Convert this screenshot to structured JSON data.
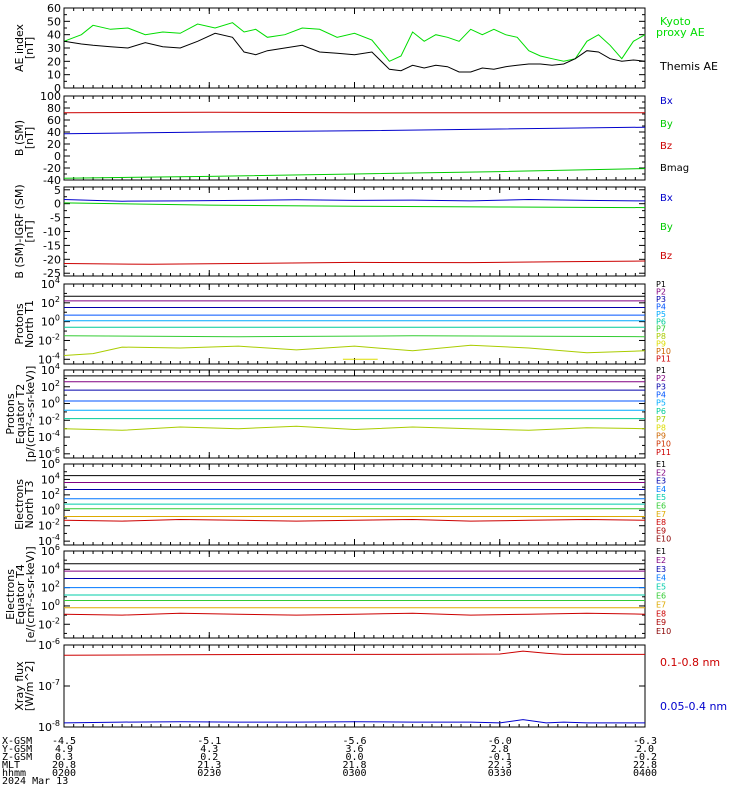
{
  "chart_data": [
    {
      "type": "line",
      "ylabel_lines": [
        "AE index",
        "[nT]"
      ],
      "ylim": [
        0,
        60
      ],
      "yticks": [
        "0",
        "10",
        "20",
        "30",
        "40",
        "50",
        "60"
      ],
      "yticks_values": [
        0,
        10,
        20,
        30,
        40,
        50,
        60
      ],
      "yscale": "linear",
      "series": [
        {
          "name": "Kyoto proxy AE",
          "color": "#00dd00",
          "x": [
            0,
            6,
            10,
            16,
            22,
            28,
            34,
            40,
            46,
            52,
            58,
            62,
            66,
            70,
            76,
            82,
            88,
            94,
            100,
            106,
            112,
            116,
            120,
            124,
            128,
            132,
            136,
            140,
            144,
            148,
            152,
            156,
            160,
            164,
            168,
            172,
            176,
            180,
            184,
            188,
            192,
            196,
            200
          ],
          "y": [
            35,
            40,
            47,
            44,
            45,
            40,
            42,
            41,
            48,
            45,
            49,
            42,
            44,
            38,
            40,
            45,
            44,
            38,
            41,
            36,
            20,
            24,
            42,
            35,
            40,
            38,
            35,
            44,
            40,
            44,
            40,
            38,
            28,
            24,
            22,
            20,
            22,
            35,
            40,
            32,
            22,
            35,
            40
          ]
        },
        {
          "name": "Themis AE",
          "color": "#000000",
          "x": [
            0,
            6,
            10,
            16,
            22,
            28,
            34,
            40,
            46,
            52,
            58,
            62,
            66,
            70,
            76,
            82,
            88,
            94,
            100,
            106,
            112,
            116,
            120,
            124,
            128,
            132,
            136,
            140,
            144,
            148,
            152,
            156,
            160,
            164,
            168,
            172,
            176,
            180,
            184,
            188,
            192,
            196,
            200
          ],
          "y": [
            35,
            33,
            32,
            31,
            30,
            34,
            31,
            30,
            35,
            41,
            38,
            27,
            25,
            28,
            30,
            32,
            27,
            26,
            25,
            27,
            14,
            13,
            17,
            15,
            17,
            16,
            12,
            12,
            15,
            14,
            16,
            17,
            18,
            18,
            17,
            18,
            22,
            28,
            27,
            22,
            20,
            21,
            20
          ]
        }
      ]
    },
    {
      "type": "line",
      "ylabel_lines": [
        "B (SM)",
        "[nT]"
      ],
      "ylim": [
        -40,
        100
      ],
      "yticks": [
        "-40",
        "-20",
        "0",
        "20",
        "40",
        "60",
        "80",
        "100"
      ],
      "yticks_values": [
        -40,
        -20,
        0,
        20,
        40,
        60,
        80,
        100
      ],
      "yscale": "linear",
      "series": [
        {
          "name": "Bx",
          "color": "#0000cc",
          "x": [
            0,
            50,
            100,
            150,
            200
          ],
          "y": [
            37,
            40,
            42,
            45,
            48
          ]
        },
        {
          "name": "By",
          "color": "#00cc00",
          "x": [
            0,
            50,
            100,
            150,
            200
          ],
          "y": [
            -37,
            -34,
            -30,
            -26,
            -21
          ]
        },
        {
          "name": "Bz",
          "color": "#cc0000",
          "x": [
            0,
            50,
            100,
            150,
            200
          ],
          "y": [
            72,
            73,
            72,
            72,
            72
          ]
        },
        {
          "name": "Bmag",
          "color": "#000000",
          "x": [],
          "y": []
        }
      ]
    },
    {
      "type": "line",
      "ylabel_lines": [
        "B (SM)-IGRF (SM)",
        "[nT]"
      ],
      "ylim": [
        -26,
        6
      ],
      "yticks": [
        "-25",
        "-20",
        "-15",
        "-10",
        "-5",
        "0",
        "5"
      ],
      "yticks_values": [
        -25,
        -20,
        -15,
        -10,
        -5,
        0,
        5
      ],
      "yscale": "linear",
      "series": [
        {
          "name": "Bx",
          "color": "#0000cc",
          "x": [
            0,
            20,
            40,
            60,
            80,
            100,
            120,
            140,
            160,
            180,
            200
          ],
          "y": [
            1.5,
            0.9,
            1.0,
            1.2,
            1.4,
            1.2,
            1.3,
            1.0,
            1.5,
            1.2,
            1.0
          ]
        },
        {
          "name": "By",
          "color": "#00cc00",
          "x": [
            0,
            50,
            100,
            150,
            200
          ],
          "y": [
            0.3,
            -0.5,
            -0.9,
            -1.2,
            -1.4
          ]
        },
        {
          "name": "Bz",
          "color": "#cc0000",
          "x": [
            0,
            30,
            60,
            100,
            140,
            170,
            200
          ],
          "y": [
            -21.5,
            -21.8,
            -21.5,
            -21.1,
            -21.2,
            -20.9,
            -20.6
          ]
        }
      ]
    },
    {
      "type": "line",
      "ylabel_lines": [
        "Protons",
        "North T1"
      ],
      "ylim": [
        -4.5,
        4
      ],
      "yticks": [
        "10^-4",
        "10^-2",
        "10^0",
        "10^2",
        "10^4"
      ],
      "yticks_values": [
        -4,
        -2,
        0,
        2,
        4
      ],
      "yscale": "log10",
      "series": [
        {
          "name": "P1",
          "color": "#000000",
          "x": [
            0,
            200
          ],
          "y": [
            2.7,
            2.7
          ]
        },
        {
          "name": "P2",
          "color": "#800080",
          "x": [
            0,
            200
          ],
          "y": [
            2.2,
            2.2
          ]
        },
        {
          "name": "P3",
          "color": "#0000aa",
          "x": [
            0,
            200
          ],
          "y": [
            1.5,
            1.5
          ]
        },
        {
          "name": "P4",
          "color": "#0055ff",
          "x": [
            0,
            200
          ],
          "y": [
            0.7,
            0.7
          ]
        },
        {
          "name": "P5",
          "color": "#00aaff",
          "x": [
            0,
            200
          ],
          "y": [
            0.1,
            0.1
          ]
        },
        {
          "name": "P6",
          "color": "#00cc99",
          "x": [
            0,
            200
          ],
          "y": [
            -0.6,
            -0.6
          ]
        },
        {
          "name": "P7",
          "color": "#33cc33",
          "x": [
            0,
            60,
            120,
            200
          ],
          "y": [
            -1.5,
            -1.6,
            -1.5,
            -1.6
          ]
        },
        {
          "name": "P8",
          "color": "#aacc00",
          "x": [
            0,
            10,
            20,
            40,
            60,
            80,
            100,
            120,
            140,
            160,
            180,
            200
          ],
          "y": [
            -3.6,
            -3.4,
            -2.7,
            -2.8,
            -2.6,
            -3.0,
            -2.6,
            -3.1,
            -2.5,
            -2.8,
            -3.3,
            -3.1
          ]
        },
        {
          "name": "P9",
          "color": "#dddd00",
          "x": [
            96,
            108
          ],
          "y": [
            -4,
            -4
          ]
        },
        {
          "name": "P10",
          "color": "#cc6600",
          "x": [],
          "y": []
        },
        {
          "name": "P11",
          "color": "#cc0000",
          "x": [],
          "y": []
        }
      ]
    },
    {
      "type": "line",
      "ylabel_lines": [
        "Protons",
        "Equator T2",
        "[p/(cm²-s-sr-keV)]"
      ],
      "ylim": [
        -6.5,
        4
      ],
      "yticks": [
        "10^-6",
        "10^-4",
        "10^-2",
        "10^0",
        "10^2",
        "10^4"
      ],
      "yticks_values": [
        -6,
        -4,
        -2,
        0,
        2,
        4
      ],
      "yscale": "log10",
      "series": [
        {
          "name": "P1",
          "color": "#000000",
          "x": [
            0,
            200
          ],
          "y": [
            3.3,
            3.3
          ]
        },
        {
          "name": "P2",
          "color": "#800080",
          "x": [
            0,
            200
          ],
          "y": [
            2.6,
            2.6
          ]
        },
        {
          "name": "P3",
          "color": "#0000aa",
          "x": [
            0,
            200
          ],
          "y": [
            1.6,
            1.6
          ]
        },
        {
          "name": "P4",
          "color": "#0055ff",
          "x": [
            0,
            200
          ],
          "y": [
            0.3,
            0.3
          ]
        },
        {
          "name": "P5",
          "color": "#00aaff",
          "x": [
            0,
            200
          ],
          "y": [
            -0.8,
            -0.8
          ]
        },
        {
          "name": "P6",
          "color": "#00cc99",
          "x": [
            0,
            200
          ],
          "y": [
            -1.8,
            -1.8
          ]
        },
        {
          "name": "P7",
          "color": "#aacc00",
          "x": [
            0,
            20,
            40,
            60,
            80,
            100,
            120,
            140,
            160,
            180,
            200
          ],
          "y": [
            -3.0,
            -3.2,
            -2.8,
            -3.0,
            -2.7,
            -3.1,
            -2.8,
            -3.0,
            -3.2,
            -2.9,
            -3.0
          ]
        },
        {
          "name": "P8",
          "color": "#dddd00",
          "x": [],
          "y": []
        },
        {
          "name": "P9",
          "color": "#cc6600",
          "x": [],
          "y": []
        },
        {
          "name": "P10",
          "color": "#cc3300",
          "x": [],
          "y": []
        },
        {
          "name": "P11",
          "color": "#cc0000",
          "x": [],
          "y": []
        }
      ]
    },
    {
      "type": "line",
      "ylabel_lines": [
        "Electrons",
        "North T3"
      ],
      "ylim": [
        -4.5,
        6
      ],
      "yticks": [
        "10^-4",
        "10^-2",
        "10^0",
        "10^2",
        "10^4",
        "10^6"
      ],
      "yticks_values": [
        -4,
        -2,
        0,
        2,
        4,
        6
      ],
      "yscale": "log10",
      "series": [
        {
          "name": "E1",
          "color": "#000000",
          "x": [
            0,
            200
          ],
          "y": [
            4.5,
            4.5
          ]
        },
        {
          "name": "E2",
          "color": "#800080",
          "x": [
            0,
            200
          ],
          "y": [
            3.6,
            3.6
          ]
        },
        {
          "name": "E3",
          "color": "#0000aa",
          "x": [
            0,
            200
          ],
          "y": [
            2.7,
            2.7
          ]
        },
        {
          "name": "E4",
          "color": "#0077ff",
          "x": [
            0,
            200
          ],
          "y": [
            1.5,
            1.5
          ]
        },
        {
          "name": "E5",
          "color": "#00ccaa",
          "x": [
            0,
            200
          ],
          "y": [
            0.8,
            0.8
          ]
        },
        {
          "name": "E6",
          "color": "#33cc33",
          "x": [
            0,
            200
          ],
          "y": [
            0.2,
            0.2
          ]
        },
        {
          "name": "E7",
          "color": "#ddaa00",
          "x": [
            0,
            200
          ],
          "y": [
            -0.8,
            -0.8
          ]
        },
        {
          "name": "E8",
          "color": "#cc0000",
          "x": [
            0,
            20,
            40,
            60,
            80,
            100,
            120,
            140,
            160,
            180,
            200
          ],
          "y": [
            -1.3,
            -1.4,
            -1.2,
            -1.3,
            -1.4,
            -1.3,
            -1.2,
            -1.4,
            -1.3,
            -1.2,
            -1.3
          ]
        },
        {
          "name": "E9",
          "color": "#aa0000",
          "x": [],
          "y": []
        },
        {
          "name": "E10",
          "color": "#880000",
          "x": [],
          "y": []
        }
      ]
    },
    {
      "type": "line",
      "ylabel_lines": [
        "Electrons",
        "Equator T4",
        "[e/(cm²-s-sr-keV)]"
      ],
      "ylim": [
        -3.5,
        6
      ],
      "yticks": [
        "10^-2",
        "10^0",
        "10^2",
        "10^4",
        "10^6"
      ],
      "yticks_values": [
        -2,
        0,
        2,
        4,
        6
      ],
      "yscale": "log10",
      "series": [
        {
          "name": "E1",
          "color": "#000000",
          "x": [
            0,
            200
          ],
          "y": [
            4.6,
            4.6
          ]
        },
        {
          "name": "E2",
          "color": "#800080",
          "x": [
            0,
            200
          ],
          "y": [
            3.8,
            3.8
          ]
        },
        {
          "name": "E3",
          "color": "#0000aa",
          "x": [
            0,
            200
          ],
          "y": [
            3.0,
            3.0
          ]
        },
        {
          "name": "E4",
          "color": "#0077ff",
          "x": [
            0,
            200
          ],
          "y": [
            2.0,
            2.0
          ]
        },
        {
          "name": "E5",
          "color": "#00ccaa",
          "x": [
            0,
            200
          ],
          "y": [
            1.2,
            1.2
          ]
        },
        {
          "name": "E6",
          "color": "#33cc33",
          "x": [
            0,
            200
          ],
          "y": [
            0.6,
            0.6
          ]
        },
        {
          "name": "E7",
          "color": "#ddaa00",
          "x": [
            0,
            200
          ],
          "y": [
            -0.2,
            -0.2
          ]
        },
        {
          "name": "E8",
          "color": "#cc0000",
          "x": [
            0,
            20,
            40,
            60,
            80,
            100,
            120,
            140,
            160,
            180,
            200
          ],
          "y": [
            -0.9,
            -1.0,
            -0.8,
            -0.9,
            -1.0,
            -0.9,
            -0.8,
            -1.0,
            -0.9,
            -0.8,
            -0.9
          ]
        },
        {
          "name": "E9",
          "color": "#aa0000",
          "x": [],
          "y": []
        },
        {
          "name": "E10",
          "color": "#880000",
          "x": [],
          "y": []
        }
      ]
    },
    {
      "type": "line",
      "ylabel_lines": [
        "Xray flux",
        "[W/m^2]"
      ],
      "ylim": [
        -8,
        -6
      ],
      "yticks": [
        "10^-8",
        "10^-7",
        "10^-6"
      ],
      "yticks_values": [
        -8,
        -7,
        -6
      ],
      "yscale": "log10",
      "series": [
        {
          "name": "0.1-0.8 nm",
          "color": "#cc0000",
          "x": [
            0,
            40,
            80,
            120,
            150,
            158,
            166,
            172,
            200
          ],
          "y": [
            -6.25,
            -6.24,
            -6.23,
            -6.23,
            -6.22,
            -6.15,
            -6.2,
            -6.23,
            -6.23
          ]
        },
        {
          "name": "0.05-0.4 nm",
          "color": "#0000cc",
          "x": [
            0,
            20,
            40,
            60,
            80,
            100,
            120,
            140,
            150,
            158,
            166,
            172,
            180,
            200
          ],
          "y": [
            -7.9,
            -7.88,
            -7.87,
            -7.88,
            -7.88,
            -7.87,
            -7.88,
            -7.88,
            -7.9,
            -7.82,
            -7.9,
            -7.88,
            -7.9,
            -7.9
          ]
        }
      ]
    }
  ],
  "time_axis": {
    "rows": [
      {
        "label": "X-GSM",
        "values": [
          "-4.5",
          "-5.1",
          "-5.6",
          "-6.0",
          "-6.3"
        ]
      },
      {
        "label": "Y-GSM",
        "values": [
          "4.9",
          "4.3",
          "3.6",
          "2.8",
          "2.0"
        ]
      },
      {
        "label": "Z-GSM",
        "values": [
          "0.3",
          "0.2",
          "0.0",
          "-0.1",
          "-0.2"
        ]
      },
      {
        "label": "MLT",
        "values": [
          "20.8",
          "21.3",
          "21.8",
          "22.3",
          "22.8"
        ]
      },
      {
        "label": "hhmm",
        "values": [
          "0200",
          "0230",
          "0300",
          "0330",
          "0400"
        ]
      }
    ],
    "date": "2024 Mar 13",
    "xlim": [
      0,
      200
    ]
  },
  "legend_extra": {
    "kyoto_line1": "Kyoto",
    "kyoto_line2": "proxy AE"
  }
}
